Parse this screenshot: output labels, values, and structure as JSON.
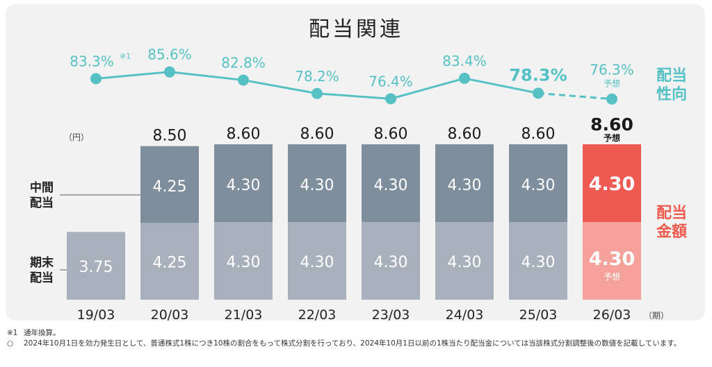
{
  "title": "配当関連",
  "unit_label": "（円）",
  "period_label": "（期）",
  "right_labels": {
    "payout_line1": "配当",
    "payout_line2": "性向",
    "amount_line1": "配当",
    "amount_line2": "金額"
  },
  "left_labels": {
    "interim_line1": "中間",
    "interim_line2": "配当",
    "final_line1": "期末",
    "final_line2": "配当"
  },
  "forecast_label": "予想",
  "colors": {
    "interim": "#7f8e9c",
    "final": "#a8b1bb",
    "forecast_interim": "#ee5a52",
    "forecast_final": "#f4a19a",
    "line": "#55c1c4",
    "accent": "#ef5a4f",
    "total": "#1a1a1a"
  },
  "chart_data": {
    "type": "bar",
    "stacked": true,
    "categories": [
      "19/03",
      "20/03",
      "21/03",
      "22/03",
      "23/03",
      "24/03",
      "25/03",
      "26/03"
    ],
    "series": [
      {
        "name": "期末配当",
        "values": [
          3.75,
          4.25,
          4.3,
          4.3,
          4.3,
          4.3,
          4.3,
          4.3
        ]
      },
      {
        "name": "中間配当",
        "values": [
          null,
          4.25,
          4.3,
          4.3,
          4.3,
          4.3,
          4.3,
          4.3
        ]
      }
    ],
    "segment_labels": {
      "final": [
        "3.75",
        "4.25",
        "4.30",
        "4.30",
        "4.30",
        "4.30",
        "4.30",
        "4.30"
      ],
      "interim": [
        "",
        "4.25",
        "4.30",
        "4.30",
        "4.30",
        "4.30",
        "4.30",
        "4.30"
      ]
    },
    "totals": [
      "",
      "8.50",
      "8.60",
      "8.60",
      "8.60",
      "8.60",
      "8.60",
      "8.60"
    ],
    "forecast_index": 7,
    "ylabel": "（円）",
    "xlabel": "（期）",
    "ylim": [
      0,
      8.6
    ],
    "line_series": {
      "name": "配当性向",
      "values": [
        83.3,
        85.6,
        82.8,
        78.2,
        76.4,
        83.4,
        78.3,
        76.3
      ],
      "labels": [
        "83.3%",
        "85.6%",
        "82.8%",
        "78.2%",
        "76.4%",
        "83.4%",
        "78.3%",
        "76.3%"
      ],
      "first_note_mark": "※1",
      "highlight_index": 6,
      "forecast_index": 7,
      "ylim": [
        76.0,
        86.0
      ]
    }
  },
  "footnotes": [
    {
      "mark": "※1",
      "text": "通年換算。"
    },
    {
      "mark": "○",
      "text": "2024年10月1日を効力発生日として、普通株式1株につき10株の割合をもって株式分割を行っており、2024年10月1日以前の1株当たり配当金については当該株式分割調整後の数値を記載しています。"
    }
  ]
}
